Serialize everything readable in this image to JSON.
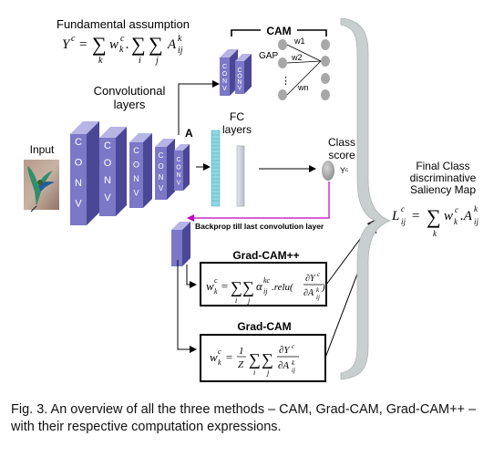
{
  "fundamental_assumption": {
    "label": "Fundamental assumption",
    "formula": "Yᶜ = ∑ₖ wᶜₖ. ∑ᵢ ∑ⱼ Aᵏᵢⱼ"
  },
  "conv_layers_label": [
    "Convolutional",
    "layers"
  ],
  "input_label": "Input",
  "conv_text": "CONV",
  "activation_label": "A",
  "fc_label": [
    "FC",
    "layers"
  ],
  "cam": {
    "label": "CAM",
    "gap_label": "GAP",
    "weights": [
      "w1",
      "w2",
      "wn"
    ]
  },
  "class_score": {
    "label": [
      "Class",
      "score"
    ],
    "symbol": "Yᶜ"
  },
  "backprop_label": "Backprop till last convolution layer",
  "gradcampp": {
    "title": "Grad-CAM++",
    "formula": "wᶜₖ = ∑ᵢ ∑ⱼ αᵏᶜᵢⱼ.relu(∂Yᶜ/∂Aᵏᵢⱼ)"
  },
  "gradcam": {
    "title": "Grad-CAM",
    "formula": "wᶜₖ = (1/Z) ∑ᵢ ∑ⱼ ∂Yᶜ/∂Aᵏᵢⱼ"
  },
  "final": {
    "label": [
      "Final Class",
      "discriminative",
      "Saliency Map"
    ],
    "formula": "Lᶜᵢⱼ = ∑ₖ wᶜₖ.Aᵏᵢⱼ"
  },
  "caption": "Fig. 3. An overview of all the three methods – CAM, Grad-CAM, Grad-CAM++ – with their respective computation expressions.",
  "colors": {
    "conv_front": "#7b78c8",
    "conv_side": "#4a4796",
    "conv_top": "#b7b5e6",
    "fc_cyan": "#8fd6e3",
    "node_gray": "#a7a7a7",
    "backprop_arrow": "#c000c0",
    "brace_gray": "#c9cfcf"
  }
}
